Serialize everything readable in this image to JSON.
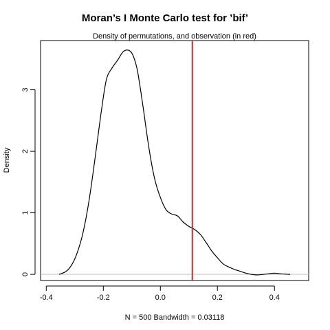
{
  "chart_data": {
    "type": "line",
    "title": "Moran’s I Monte Carlo test for ’bif’",
    "subtitle": "Density of permutations, and observation (in red)",
    "xlabel": "N = 500   Bandwidth = 0.03118",
    "ylabel": "Density",
    "xlim": [
      -0.42,
      0.52
    ],
    "ylim": [
      -0.1,
      3.8
    ],
    "x_ticks": [
      -0.4,
      -0.2,
      0.0,
      0.2,
      0.4
    ],
    "x_tick_labels": [
      "-0.4",
      "-0.2",
      "0.0",
      "0.2",
      "0.4"
    ],
    "y_ticks": [
      0,
      1,
      2,
      3
    ],
    "y_tick_labels": [
      "0",
      "1",
      "2",
      "3"
    ],
    "grid": false,
    "series": [
      {
        "x": [
          -0.355,
          -0.33,
          -0.31,
          -0.29,
          -0.27,
          -0.25,
          -0.23,
          -0.21,
          -0.19,
          -0.17,
          -0.15,
          -0.13,
          -0.11,
          -0.095,
          -0.08,
          -0.06,
          -0.04,
          -0.02,
          0.0,
          0.02,
          0.04,
          0.06,
          0.08,
          0.1,
          0.12,
          0.14,
          0.16,
          0.18,
          0.2,
          0.22,
          0.24,
          0.26,
          0.28,
          0.3,
          0.32,
          0.34,
          0.36,
          0.38,
          0.4,
          0.42,
          0.455
        ],
        "y": [
          0.0,
          0.05,
          0.16,
          0.37,
          0.7,
          1.2,
          1.85,
          2.55,
          3.15,
          3.35,
          3.48,
          3.62,
          3.64,
          3.55,
          3.3,
          2.7,
          2.05,
          1.55,
          1.25,
          1.05,
          0.98,
          0.95,
          0.85,
          0.78,
          0.73,
          0.65,
          0.52,
          0.38,
          0.27,
          0.17,
          0.12,
          0.08,
          0.05,
          0.02,
          0.0,
          -0.01,
          0.0,
          0.01,
          0.02,
          0.01,
          0.0
        ],
        "color": "#000000"
      }
    ],
    "observation": {
      "x": 0.112,
      "color": "#d62728"
    },
    "zero_line_color": "#bebebe"
  }
}
